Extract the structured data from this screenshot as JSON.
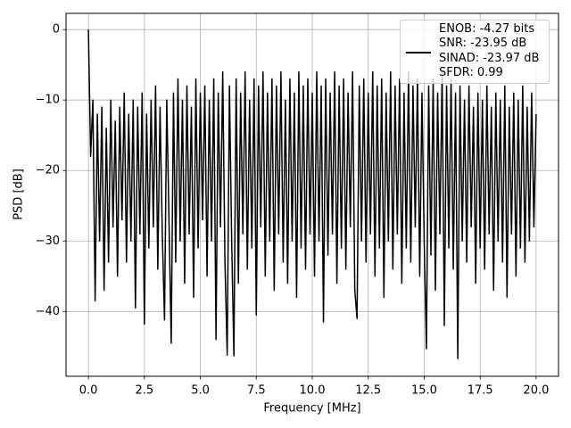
{
  "chart_data": {
    "type": "line",
    "xlabel": "Frequency [MHz]",
    "ylabel": "PSD [dB]",
    "xlim": [
      -1,
      21
    ],
    "ylim": [
      -49.2,
      2.3
    ],
    "xticks": [
      {
        "value": 0,
        "label": "0.0"
      },
      {
        "value": 2.5,
        "label": "2.5"
      },
      {
        "value": 5,
        "label": "5.0"
      },
      {
        "value": 7.5,
        "label": "7.5"
      },
      {
        "value": 10,
        "label": "10.0"
      },
      {
        "value": 12.5,
        "label": "12.5"
      },
      {
        "value": 15,
        "label": "15.0"
      },
      {
        "value": 17.5,
        "label": "17.5"
      },
      {
        "value": 20,
        "label": "20.0"
      }
    ],
    "yticks": [
      {
        "value": 0,
        "label": "0"
      },
      {
        "value": -10,
        "label": "−10"
      },
      {
        "value": -20,
        "label": "−20"
      },
      {
        "value": -30,
        "label": "−30"
      },
      {
        "value": -40,
        "label": "−40"
      }
    ],
    "grid": true,
    "legend": "upper right",
    "x": [
      0,
      0.1,
      0.2,
      0.3,
      0.4,
      0.5,
      0.6,
      0.7,
      0.8,
      0.9,
      1,
      1.1,
      1.2,
      1.3,
      1.4,
      1.5,
      1.6,
      1.7,
      1.8,
      1.9,
      2,
      2.1,
      2.2,
      2.3,
      2.4,
      2.5,
      2.6,
      2.7,
      2.8,
      2.9,
      3,
      3.1,
      3.2,
      3.3,
      3.4,
      3.5,
      3.6,
      3.7,
      3.8,
      3.9,
      4,
      4.1,
      4.2,
      4.3,
      4.4,
      4.5,
      4.6,
      4.7,
      4.8,
      4.9,
      5,
      5.1,
      5.2,
      5.3,
      5.4,
      5.5,
      5.6,
      5.7,
      5.8,
      5.9,
      6,
      6.1,
      6.2,
      6.3,
      6.4,
      6.5,
      6.6,
      6.7,
      6.8,
      6.9,
      7,
      7.1,
      7.2,
      7.3,
      7.4,
      7.5,
      7.6,
      7.7,
      7.8,
      7.9,
      8,
      8.1,
      8.2,
      8.3,
      8.4,
      8.5,
      8.6,
      8.7,
      8.8,
      8.9,
      9,
      9.1,
      9.2,
      9.3,
      9.4,
      9.5,
      9.6,
      9.7,
      9.8,
      9.9,
      10,
      10.1,
      10.2,
      10.3,
      10.4,
      10.5,
      10.6,
      10.7,
      10.8,
      10.9,
      11,
      11.1,
      11.2,
      11.3,
      11.4,
      11.5,
      11.6,
      11.7,
      11.8,
      11.9,
      12,
      12.1,
      12.2,
      12.3,
      12.4,
      12.5,
      12.6,
      12.7,
      12.8,
      12.9,
      13,
      13.1,
      13.2,
      13.3,
      13.4,
      13.5,
      13.6,
      13.7,
      13.8,
      13.9,
      14,
      14.1,
      14.2,
      14.3,
      14.4,
      14.5,
      14.6,
      14.7,
      14.8,
      14.9,
      15,
      15.1,
      15.2,
      15.3,
      15.4,
      15.5,
      15.6,
      15.7,
      15.8,
      15.9,
      16,
      16.1,
      16.2,
      16.3,
      16.4,
      16.5,
      16.6,
      16.7,
      16.8,
      16.9,
      17,
      17.1,
      17.2,
      17.3,
      17.4,
      17.5,
      17.6,
      17.7,
      17.8,
      17.9,
      18,
      18.1,
      18.2,
      18.3,
      18.4,
      18.5,
      18.6,
      18.7,
      18.8,
      18.9,
      19,
      19.1,
      19.2,
      19.3,
      19.4,
      19.5,
      19.6,
      19.7,
      19.8,
      19.9,
      20
    ],
    "series": [
      {
        "name": "ENOB: -4.27 bits\nSNR: -23.95 dB\nSINAD: -23.97 dB\nSFDR: 0.99",
        "color": "#000000",
        "values": [
          0,
          -18,
          -10,
          -38.5,
          -12,
          -30,
          -11,
          -37,
          -14,
          -33,
          -10,
          -28,
          -13,
          -35,
          -11,
          -27,
          -9,
          -33,
          -12,
          -30,
          -10,
          -39.5,
          -11,
          -29,
          -9,
          -41.8,
          -12,
          -31,
          -10,
          -28,
          -8,
          -34,
          -11,
          -29,
          -41.2,
          -10,
          -27,
          -44.5,
          -9,
          -33,
          -7,
          -30,
          -10,
          -36,
          -8,
          -29,
          -11,
          -38,
          -7,
          -31,
          -9,
          -27,
          -8,
          -35,
          -10,
          -30,
          -7,
          -44,
          -9,
          -28,
          -6,
          -33,
          -46.2,
          -8,
          -30,
          -46.3,
          -7,
          -36,
          -9,
          -29,
          -6,
          -34,
          -10,
          -31,
          -7,
          -40.5,
          -8,
          -28,
          -6,
          -35,
          -9,
          -30,
          -7,
          -37,
          -8,
          -29,
          -6,
          -33,
          -10,
          -36,
          -7,
          -30,
          -9,
          -38,
          -6,
          -31,
          -8,
          -34,
          -7,
          -29,
          -9,
          -35,
          -6,
          -30,
          -8,
          -41.5,
          -7,
          -32,
          -9,
          -29,
          -6,
          -36,
          -8,
          -31,
          -7,
          -34,
          -9,
          -28,
          -6,
          -37,
          -41,
          -8,
          -30,
          -7,
          -33,
          -9,
          -29,
          -6,
          -35,
          -8,
          -31,
          -7,
          -38,
          -9,
          -30,
          -6,
          -34,
          -8,
          -29,
          -7,
          -36,
          -9,
          -31,
          -6,
          -33,
          -8,
          -28,
          -7,
          -35,
          -9,
          -30,
          -45.3,
          -8,
          -32,
          -7,
          -37,
          -9,
          -29,
          -6,
          -42,
          -8,
          -31,
          -7,
          -34,
          -9,
          -46.7,
          -8,
          -30,
          -10,
          -33,
          -8,
          -28,
          -11,
          -36,
          -9,
          -31,
          -10,
          -34,
          -8,
          -29,
          -11,
          -37,
          -9,
          -30,
          -10,
          -33,
          -8,
          -38,
          -11,
          -29,
          -9,
          -35,
          -10,
          -31,
          -8,
          -33,
          -11,
          -30,
          -9,
          -28,
          -12
        ]
      }
    ]
  }
}
